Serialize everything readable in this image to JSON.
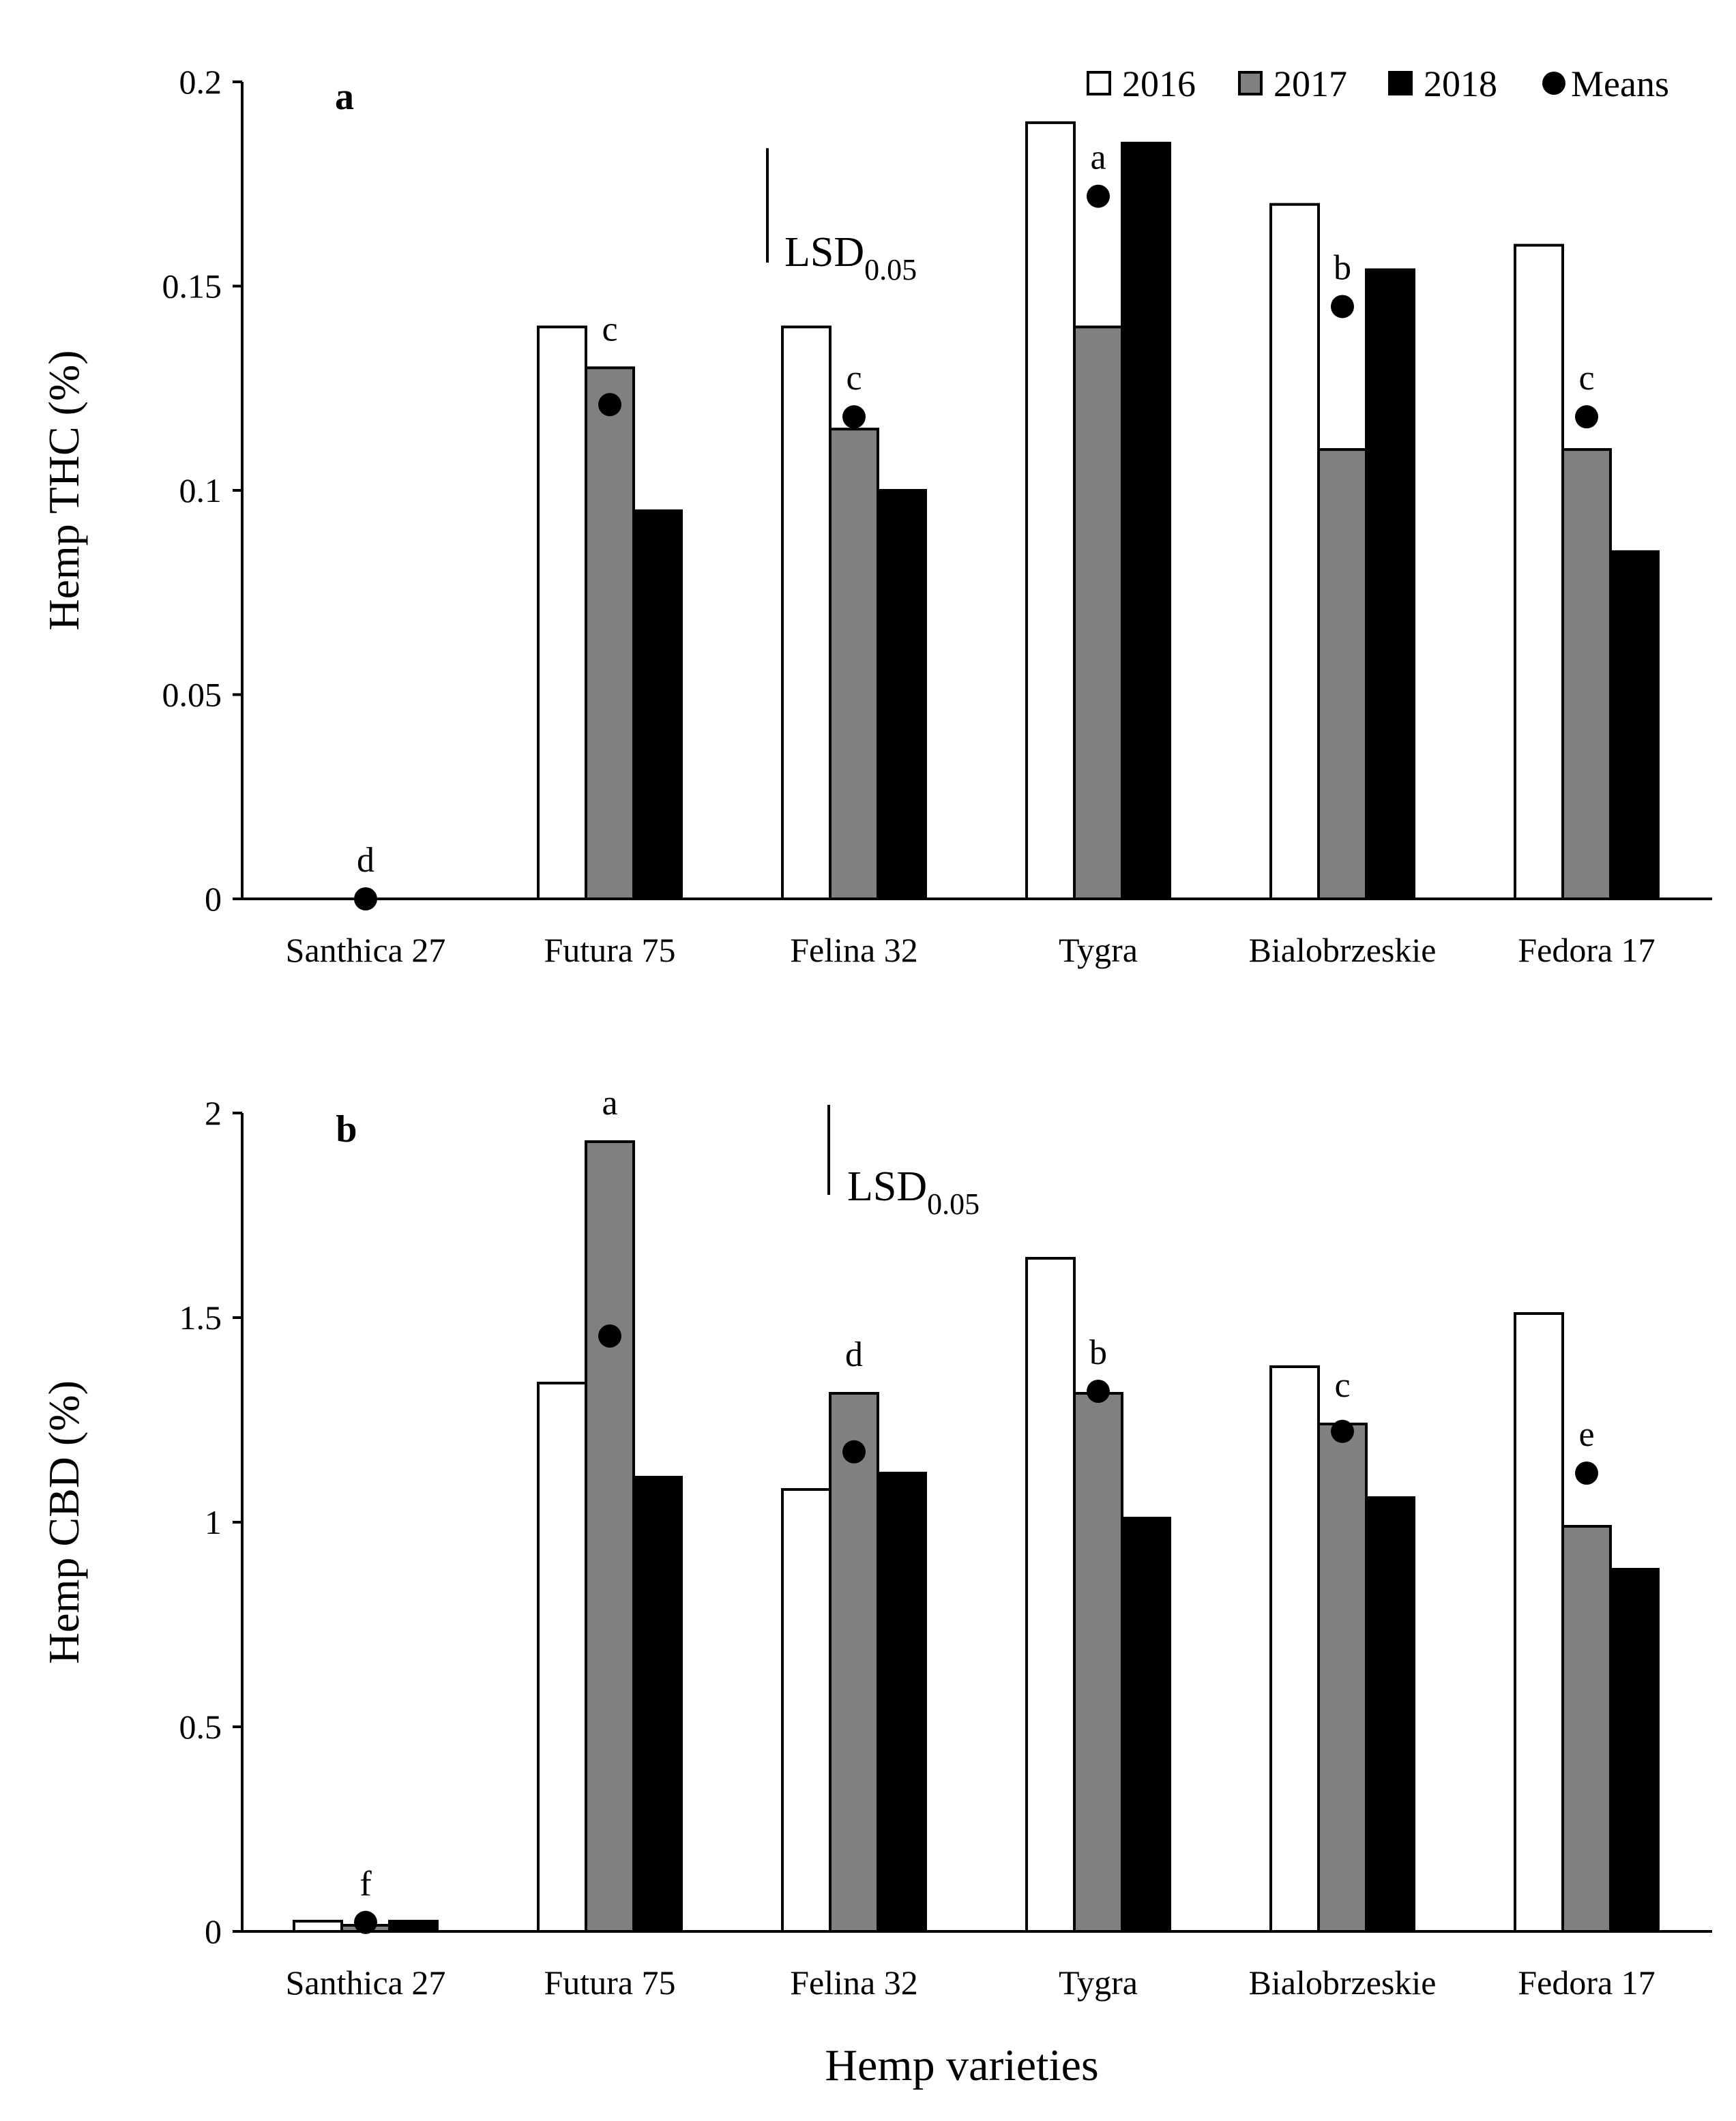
{
  "colors": {
    "y2016": "#ffffff",
    "y2017": "#808080",
    "y2018": "#000000",
    "means": "#000000",
    "axis": "#000000"
  },
  "legend": {
    "items": [
      {
        "label": "2016",
        "color": "#ffffff",
        "shape": "square"
      },
      {
        "label": "2017",
        "color": "#808080",
        "shape": "square"
      },
      {
        "label": "2018",
        "color": "#000000",
        "shape": "square"
      },
      {
        "label": "Means",
        "color": "#000000",
        "shape": "circle"
      }
    ]
  },
  "x_title": "Hemp varieties",
  "chart_data": [
    {
      "type": "bar",
      "panel": "a",
      "title": "",
      "ylabel": "Hemp THC (%)",
      "xlabel": "",
      "ylim": [
        0,
        0.2
      ],
      "yticks": [
        0,
        0.05,
        0.1,
        0.15,
        0.2
      ],
      "ytick_labels": [
        "0",
        "0.05",
        "0.1",
        "0.15",
        "0.2"
      ],
      "categories": [
        "Santhica 27",
        "Futura 75",
        "Felina 32",
        "Tygra",
        "Bialobrzeskie",
        "Fedora 17"
      ],
      "series": [
        {
          "name": "2016",
          "values": [
            0,
            0.14,
            0.14,
            0.19,
            0.17,
            0.16
          ]
        },
        {
          "name": "2017",
          "values": [
            0,
            0.13,
            0.115,
            0.14,
            0.11,
            0.11
          ]
        },
        {
          "name": "2018",
          "values": [
            0,
            0.095,
            0.1,
            0.185,
            0.154,
            0.085
          ]
        }
      ],
      "means": [
        0,
        0.121,
        0.118,
        0.172,
        0.145,
        0.118
      ],
      "significance_letters": [
        "d",
        "c",
        "c",
        "a",
        "b",
        "c"
      ],
      "lsd": {
        "label": "LSD",
        "subscript": "0.05",
        "value": 0.028
      },
      "legend_location": "top-right"
    },
    {
      "type": "bar",
      "panel": "b",
      "title": "",
      "ylabel": "Hemp CBD (%)",
      "xlabel": "",
      "ylim": [
        0,
        2
      ],
      "yticks": [
        0,
        0.5,
        1,
        1.5,
        2
      ],
      "ytick_labels": [
        "0",
        "0.5",
        "1",
        "1.5",
        "2"
      ],
      "categories": [
        "Santhica 27",
        "Futura 75",
        "Felina 32",
        "Tygra",
        "Bialobrzeskie",
        "Fedora 17"
      ],
      "series": [
        {
          "name": "2016",
          "values": [
            0.025,
            1.34,
            1.08,
            1.645,
            1.38,
            1.51
          ]
        },
        {
          "name": "2017",
          "values": [
            0.015,
            1.93,
            1.315,
            1.315,
            1.24,
            0.99
          ]
        },
        {
          "name": "2018",
          "values": [
            0.025,
            1.11,
            1.12,
            1.01,
            1.06,
            0.885
          ]
        }
      ],
      "means": [
        0.022,
        1.455,
        1.172,
        1.32,
        1.222,
        1.12
      ],
      "significance_letters": [
        "f",
        "a",
        "d",
        "b",
        "c",
        "e"
      ],
      "lsd": {
        "label": "LSD",
        "subscript": "0.05",
        "value": 0.22
      }
    }
  ]
}
